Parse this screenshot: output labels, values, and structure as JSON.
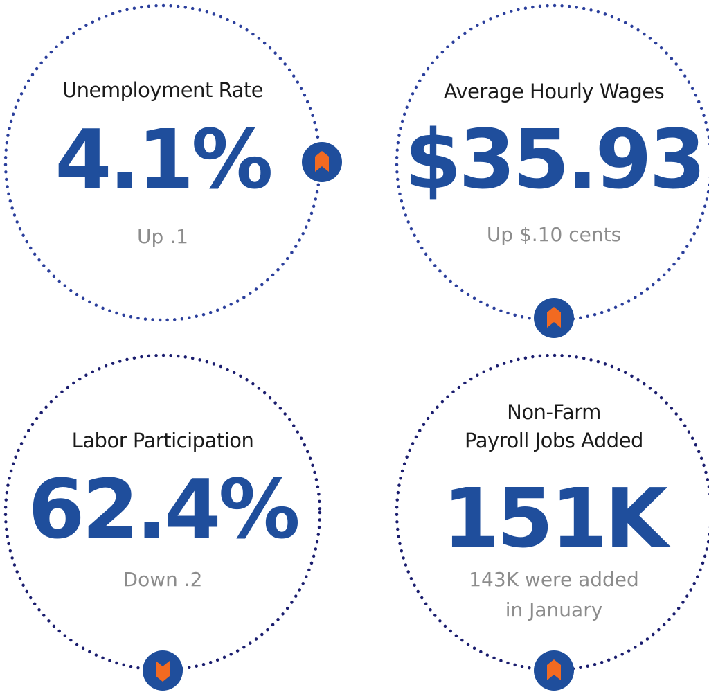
{
  "colors": {
    "value_blue": "#1f4e9c",
    "ring_blue": "#2b3f9c",
    "ring_navy": "#1a1d6e",
    "badge_fill": "#1f4e9c",
    "marker": "#f26a21",
    "note_gray": "#8c8c8c"
  },
  "stats": [
    {
      "label": "Unemployment Rate",
      "value": "4.1%",
      "note": "Up .1",
      "direction": "up",
      "badge_icon": "up-arrow-marker-icon"
    },
    {
      "label": "Average Hourly Wages",
      "value": "$35.93",
      "note": "Up $.10 cents",
      "direction": "up",
      "badge_icon": "up-arrow-marker-icon"
    },
    {
      "label": "Labor Participation",
      "value": "62.4%",
      "note": "Down .2",
      "direction": "down",
      "badge_icon": "down-arrow-marker-icon"
    },
    {
      "label_line1": "Non-Farm",
      "label_line2": "Payroll Jobs Added",
      "value": "151K",
      "note_line1": "143K were added",
      "note_line2": "in January",
      "direction": "up",
      "badge_icon": "up-arrow-marker-icon"
    }
  ]
}
